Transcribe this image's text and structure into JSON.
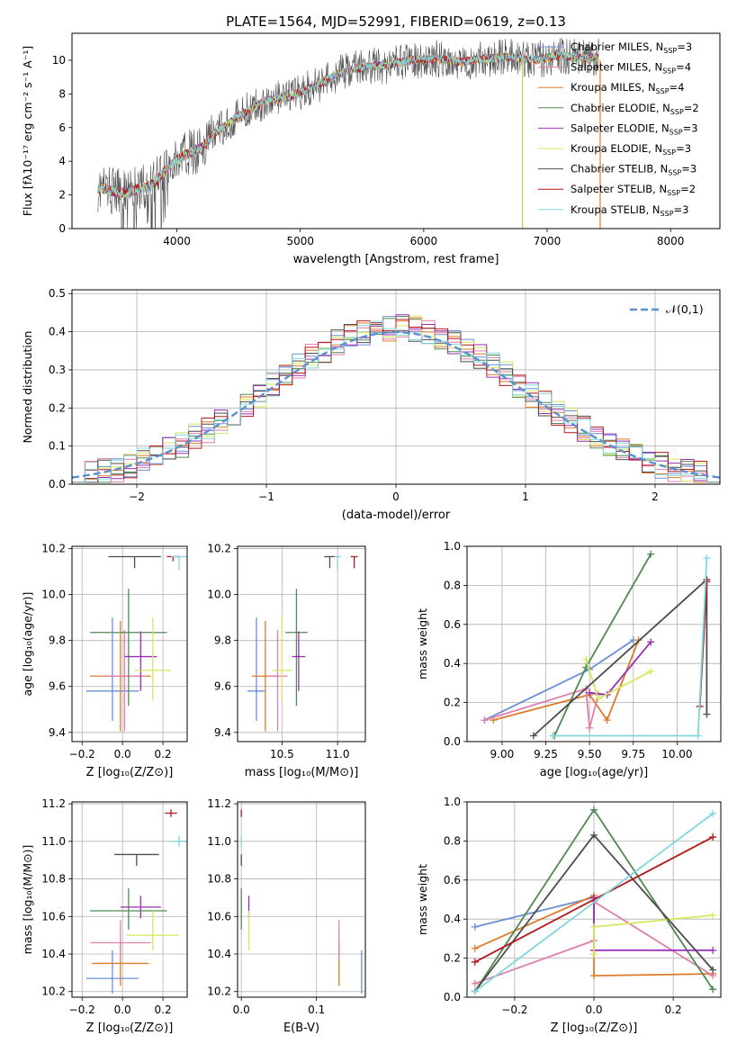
{
  "figure_title": "PLATE=1564, MJD=52991, FIBERID=0619, z=0.13",
  "colors": {
    "blue": "#6a8fd6",
    "orange": "#de7b2a",
    "green": "#4f8a53",
    "purple": "#9a2fb5",
    "yellow": "#d6e85c",
    "gray": "#4d4d4d",
    "red": "#b5171d",
    "cyan": "#7fd6dc",
    "pink": "#e07fae",
    "olive": "#c8cc54",
    "darkcyan": "#2f9fb0"
  },
  "chart_data": [
    {
      "id": "spectrum",
      "type": "line",
      "xlabel": "wavelength [Angstrom, rest frame]",
      "ylabel": "Flux [fλ10⁻¹⁷ erg cm⁻² s⁻¹ A⁻¹]",
      "xlim": [
        3150,
        8400
      ],
      "ylim": [
        0,
        11.6
      ],
      "xticks": [
        4000,
        5000,
        6000,
        7000,
        8000
      ],
      "yticks": [
        0,
        2,
        4,
        6,
        8,
        10
      ],
      "legend_position": "right",
      "legend": [
        {
          "label": "Chabrier MILES, N_SSP=3",
          "color": "blue"
        },
        {
          "label": "Salpeter MILES, N_SSP=4",
          "color": "pink"
        },
        {
          "label": "Kroupa MILES, N_SSP=4",
          "color": "orange"
        },
        {
          "label": "Chabrier ELODIE, N_SSP=2",
          "color": "green"
        },
        {
          "label": "Salpeter ELODIE, N_SSP=3",
          "color": "purple"
        },
        {
          "label": "Kroupa ELODIE, N_SSP=3",
          "color": "yellow"
        },
        {
          "label": "Chabrier STELIB, N_SSP=3",
          "color": "gray"
        },
        {
          "label": "Salpeter STELIB, N_SSP=2",
          "color": "red"
        },
        {
          "label": "Kroupa STELIB, N_SSP=3",
          "color": "cyan"
        }
      ],
      "continuum": {
        "x": [
          3400,
          3500,
          3600,
          3700,
          3800,
          3900,
          4000,
          4100,
          4200,
          4300,
          4500,
          4700,
          4900,
          5100,
          5300,
          5500,
          5700,
          5900,
          6100,
          6300,
          6500,
          6700,
          6900,
          7100,
          7300,
          7420
        ],
        "y": [
          2.4,
          2.2,
          2.1,
          2.4,
          2.6,
          3.4,
          4.1,
          4.5,
          4.8,
          5.6,
          6.7,
          7.5,
          7.8,
          8.4,
          9.2,
          9.6,
          9.7,
          10.0,
          10.1,
          9.9,
          10.1,
          10.2,
          10.0,
          10.3,
          10.1,
          10.2
        ]
      },
      "drop_lines": [
        {
          "x": 6800,
          "color": "olive"
        },
        {
          "x": 7430,
          "color": "orange"
        }
      ]
    },
    {
      "id": "residuals",
      "type": "step-histogram",
      "xlabel": "(data-model)/error",
      "ylabel": "Normed distribution",
      "xlim": [
        -2.5,
        2.5
      ],
      "ylim": [
        0,
        0.51
      ],
      "xticks": [
        -2,
        -1,
        0,
        1,
        2
      ],
      "xtick_labels": [
        "−2",
        "−1",
        "0",
        "1",
        "2"
      ],
      "yticks": [
        0,
        0.1,
        0.2,
        0.3,
        0.4,
        0.5
      ],
      "ytick_labels": [
        "0.0",
        "0.1",
        "0.2",
        "0.3",
        "0.4",
        "0.5"
      ],
      "bin_width": 0.1,
      "legend": [
        {
          "label": "𝒩(0,1)",
          "style": "dashed",
          "color": "#5a8fd0"
        }
      ],
      "legend_position": "top-right"
    },
    {
      "id": "age_vs_Z",
      "type": "errorbar",
      "xlabel": "Z [log₁₀(Z/Z⊙)]",
      "ylabel": "age  [log₁₀(age/yr)]",
      "xlim": [
        -0.25,
        0.32
      ],
      "ylim": [
        9.36,
        10.21
      ],
      "xticks": [
        -0.2,
        0.0,
        0.2
      ],
      "xtick_labels": [
        "−0.2",
        "0.0",
        "0.2"
      ],
      "yticks": [
        9.4,
        9.6,
        9.8,
        10.0,
        10.2
      ],
      "ytick_labels": [
        "9.4",
        "9.6",
        "9.8",
        "10.0",
        "10.2"
      ],
      "points": [
        {
          "color": "blue",
          "x": -0.05,
          "y": 9.58,
          "xerr": 0.13,
          "yerr": [
            0.13,
            0.32
          ]
        },
        {
          "color": "orange",
          "x": -0.01,
          "y": 9.645,
          "xerr": 0.15,
          "yerr": [
            0.24,
            0.24
          ]
        },
        {
          "color": "pink",
          "x": 0.01,
          "y": 9.645,
          "xerr": 0.1,
          "yerr": [
            0.24,
            0.2
          ]
        },
        {
          "color": "green",
          "x": 0.03,
          "y": 9.835,
          "xerr": 0.19,
          "yerr": [
            0.32,
            0.19
          ]
        },
        {
          "color": "purple",
          "x": 0.09,
          "y": 9.73,
          "xerr": 0.08,
          "yerr": [
            0.15,
            0.11
          ]
        },
        {
          "color": "yellow",
          "x": 0.15,
          "y": 9.67,
          "xerr": 0.09,
          "yerr": [
            0.13,
            0.23
          ]
        },
        {
          "color": "gray",
          "x": 0.06,
          "y": 10.165,
          "xerr": 0.13,
          "yerr": [
            0.05,
            0.0
          ]
        },
        {
          "color": "red",
          "x": 0.25,
          "y": 10.165,
          "xerr": 0.03,
          "yerr": [
            0.02,
            0.0
          ]
        },
        {
          "color": "cyan",
          "x": 0.28,
          "y": 10.165,
          "xerr": 0.04,
          "yerr": [
            0.06,
            0.0
          ]
        }
      ]
    },
    {
      "id": "age_vs_mass",
      "type": "errorbar",
      "xlabel": "mass [log₁₀(M/M⊙)]",
      "ylabel": "",
      "xlim": [
        10.1,
        11.25
      ],
      "ylim": [
        9.36,
        10.21
      ],
      "xticks": [
        10.5,
        11.0
      ],
      "xtick_labels": [
        "10.5",
        "11.0"
      ],
      "yticks": [
        9.4,
        9.6,
        9.8,
        10.0,
        10.2
      ],
      "ytick_labels": [
        "9.4",
        "9.6",
        "9.8",
        "10.0",
        "10.2"
      ],
      "points": [
        {
          "color": "blue",
          "x": 10.27,
          "y": 9.58,
          "xerr": 0.08,
          "yerr": [
            0.13,
            0.32
          ]
        },
        {
          "color": "orange",
          "x": 10.35,
          "y": 9.645,
          "xerr": 0.12,
          "yerr": [
            0.24,
            0.24
          ]
        },
        {
          "color": "pink",
          "x": 10.46,
          "y": 9.645,
          "xerr": 0.09,
          "yerr": [
            0.24,
            0.2
          ]
        },
        {
          "color": "yellow",
          "x": 10.5,
          "y": 9.67,
          "xerr": 0.09,
          "yerr": [
            0.13,
            0.23
          ]
        },
        {
          "color": "green",
          "x": 10.63,
          "y": 9.835,
          "xerr": 0.1,
          "yerr": [
            0.32,
            0.19
          ]
        },
        {
          "color": "purple",
          "x": 10.65,
          "y": 9.73,
          "xerr": 0.06,
          "yerr": [
            0.15,
            0.11
          ]
        },
        {
          "color": "gray",
          "x": 10.93,
          "y": 10.165,
          "xerr": 0.05,
          "yerr": [
            0.05,
            0.0
          ]
        },
        {
          "color": "cyan",
          "x": 11.0,
          "y": 10.165,
          "xerr": 0.03,
          "yerr": [
            0.06,
            0.0
          ]
        },
        {
          "color": "red",
          "x": 11.15,
          "y": 10.165,
          "xerr": 0.03,
          "yerr": [
            0.05,
            0.0
          ]
        }
      ]
    },
    {
      "id": "weight_vs_age",
      "type": "line",
      "xlabel": "age  [log₁₀(age/yr)]",
      "ylabel": "mass weight",
      "xlim": [
        8.8,
        10.25
      ],
      "ylim": [
        0,
        1.0
      ],
      "xticks": [
        9.0,
        9.25,
        9.5,
        9.75,
        10.0
      ],
      "xtick_labels": [
        "9.00",
        "9.25",
        "9.50",
        "9.75",
        "10.00"
      ],
      "yticks": [
        0,
        0.2,
        0.4,
        0.6,
        0.8,
        1.0
      ],
      "ytick_labels": [
        "0.0",
        "0.2",
        "0.4",
        "0.6",
        "0.8",
        "1.0"
      ],
      "series": [
        {
          "color": "blue",
          "x": [
            8.9,
            9.5,
            9.75
          ],
          "y": [
            0.11,
            0.37,
            0.52
          ]
        },
        {
          "color": "orange",
          "x": [
            8.95,
            9.5,
            9.6,
            9.78
          ],
          "y": [
            0.11,
            0.24,
            0.11,
            0.52
          ]
        },
        {
          "color": "pink",
          "x": [
            8.9,
            9.48,
            9.5,
            9.55
          ],
          "y": [
            0.11,
            0.27,
            0.07,
            0.24
          ]
        },
        {
          "color": "green",
          "x": [
            9.3,
            9.48,
            9.85
          ],
          "y": [
            0.03,
            0.38,
            0.96
          ]
        },
        {
          "color": "purple",
          "x": [
            9.5,
            9.6,
            9.85
          ],
          "y": [
            0.25,
            0.24,
            0.51
          ]
        },
        {
          "color": "yellow",
          "x": [
            9.48,
            9.55,
            9.85
          ],
          "y": [
            0.42,
            0.22,
            0.36
          ]
        },
        {
          "color": "gray",
          "x": [
            9.18,
            10.17,
            10.17
          ],
          "y": [
            0.03,
            0.83,
            0.14
          ]
        },
        {
          "color": "red",
          "x": [
            10.13,
            10.17
          ],
          "y": [
            0.18,
            0.82
          ]
        },
        {
          "color": "cyan",
          "x": [
            9.29,
            10.12,
            10.17
          ],
          "y": [
            0.03,
            0.03,
            0.94
          ]
        }
      ]
    },
    {
      "id": "mass_vs_Z",
      "type": "errorbar",
      "xlabel": "Z [log₁₀(Z/Z⊙)]",
      "ylabel": "mass [log₁₀(M/M⊙)]",
      "xlim": [
        -0.25,
        0.32
      ],
      "ylim": [
        10.17,
        11.21
      ],
      "xticks": [
        -0.2,
        0.0,
        0.2
      ],
      "xtick_labels": [
        "−0.2",
        "0.0",
        "0.2"
      ],
      "yticks": [
        10.2,
        10.4,
        10.6,
        10.8,
        11.0,
        11.2
      ],
      "ytick_labels": [
        "10.2",
        "10.4",
        "10.6",
        "10.8",
        "11.0",
        "11.2"
      ],
      "points": [
        {
          "color": "blue",
          "x": -0.05,
          "y": 10.27,
          "xerr": 0.13,
          "yerr": [
            0.08,
            0.15
          ]
        },
        {
          "color": "orange",
          "x": -0.01,
          "y": 10.35,
          "xerr": 0.14,
          "yerr": [
            0.12,
            0.12
          ]
        },
        {
          "color": "pink",
          "x": -0.01,
          "y": 10.46,
          "xerr": 0.15,
          "yerr": [
            0.09,
            0.12
          ]
        },
        {
          "color": "green",
          "x": 0.03,
          "y": 10.63,
          "xerr": 0.19,
          "yerr": [
            0.1,
            0.12
          ]
        },
        {
          "color": "purple",
          "x": 0.09,
          "y": 10.65,
          "xerr": 0.1,
          "yerr": [
            0.06,
            0.06
          ]
        },
        {
          "color": "yellow",
          "x": 0.15,
          "y": 10.5,
          "xerr": 0.13,
          "yerr": [
            0.08,
            0.13
          ]
        },
        {
          "color": "gray",
          "x": 0.07,
          "y": 10.93,
          "xerr": 0.11,
          "yerr": [
            0.06,
            0.0
          ]
        },
        {
          "color": "red",
          "x": 0.24,
          "y": 11.15,
          "xerr": 0.03,
          "yerr": [
            0.02,
            0.02
          ]
        },
        {
          "color": "cyan",
          "x": 0.28,
          "y": 11.0,
          "xerr": 0.04,
          "yerr": [
            0.03,
            0.03
          ]
        }
      ]
    },
    {
      "id": "mass_vs_ebv",
      "type": "errorbar",
      "xlabel": "E(B-V)",
      "ylabel": "",
      "xlim": [
        -0.005,
        0.165
      ],
      "ylim": [
        10.17,
        11.21
      ],
      "xticks": [
        0.0,
        0.1
      ],
      "xtick_labels": [
        "0.0",
        "0.1"
      ],
      "yticks": [
        10.2,
        10.4,
        10.6,
        10.8,
        11.0,
        11.2
      ],
      "ytick_labels": [
        "10.2",
        "10.4",
        "10.6",
        "10.8",
        "11.0",
        "11.2"
      ],
      "points": [
        {
          "color": "blue",
          "x": 0.16,
          "y": 10.27,
          "xerr": 0,
          "yerr": [
            0.08,
            0.15
          ]
        },
        {
          "color": "orange",
          "x": 0.13,
          "y": 10.35,
          "xerr": 0,
          "yerr": [
            0.12,
            0.12
          ]
        },
        {
          "color": "pink",
          "x": 0.13,
          "y": 10.46,
          "xerr": 0,
          "yerr": [
            0.09,
            0.12
          ]
        },
        {
          "color": "green",
          "x": 0.0,
          "y": 10.63,
          "xerr": 0,
          "yerr": [
            0.1,
            0.12
          ]
        },
        {
          "color": "purple",
          "x": 0.01,
          "y": 10.65,
          "xerr": 0,
          "yerr": [
            0.06,
            0.06
          ]
        },
        {
          "color": "yellow",
          "x": 0.01,
          "y": 10.5,
          "xerr": 0,
          "yerr": [
            0.08,
            0.13
          ]
        },
        {
          "color": "gray",
          "x": 0.0,
          "y": 10.93,
          "xerr": 0,
          "yerr": [
            0.06,
            0.0
          ]
        },
        {
          "color": "red",
          "x": 0.0,
          "y": 11.15,
          "xerr": 0,
          "yerr": [
            0.02,
            0.02
          ]
        },
        {
          "color": "cyan",
          "x": 0.0,
          "y": 11.0,
          "xerr": 0,
          "yerr": [
            0.03,
            0.03
          ]
        }
      ]
    },
    {
      "id": "weight_vs_Z",
      "type": "line",
      "xlabel": "Z [log₁₀(Z/Z⊙)]",
      "ylabel": "mass weight",
      "xlim": [
        -0.32,
        0.32
      ],
      "ylim": [
        0,
        1.0
      ],
      "xticks": [
        -0.2,
        0.0,
        0.2
      ],
      "xtick_labels": [
        "−0.2",
        "0.0",
        "0.2"
      ],
      "yticks": [
        0,
        0.2,
        0.4,
        0.6,
        0.8,
        1.0
      ],
      "ytick_labels": [
        "0.0",
        "0.2",
        "0.4",
        "0.6",
        "0.8",
        "1.0"
      ],
      "series": [
        {
          "color": "blue",
          "x": [
            -0.3,
            0.0
          ],
          "y": [
            0.36,
            0.51
          ]
        },
        {
          "color": "orange",
          "x": [
            -0.3,
            0.0,
            0.0,
            0.3
          ],
          "y": [
            0.25,
            0.52,
            0.11,
            0.12
          ]
        },
        {
          "color": "pink",
          "x": [
            -0.3,
            0.0,
            0.0,
            0.3
          ],
          "y": [
            0.07,
            0.29,
            0.49,
            0.11
          ]
        },
        {
          "color": "green",
          "x": [
            -0.3,
            0.0,
            0.3
          ],
          "y": [
            0.03,
            0.96,
            0.04
          ]
        },
        {
          "color": "purple",
          "x": [
            0.0,
            0.0,
            0.3
          ],
          "y": [
            0.51,
            0.24,
            0.24
          ]
        },
        {
          "color": "yellow",
          "x": [
            0.0,
            0.0,
            0.3
          ],
          "y": [
            0.22,
            0.36,
            0.42
          ]
        },
        {
          "color": "gray",
          "x": [
            -0.3,
            0.0,
            0.3
          ],
          "y": [
            0.03,
            0.83,
            0.14
          ]
        },
        {
          "color": "red",
          "x": [
            -0.3,
            0.3
          ],
          "y": [
            0.18,
            0.82
          ]
        },
        {
          "color": "cyan",
          "x": [
            -0.3,
            0.3
          ],
          "y": [
            0.03,
            0.94
          ]
        }
      ]
    }
  ]
}
